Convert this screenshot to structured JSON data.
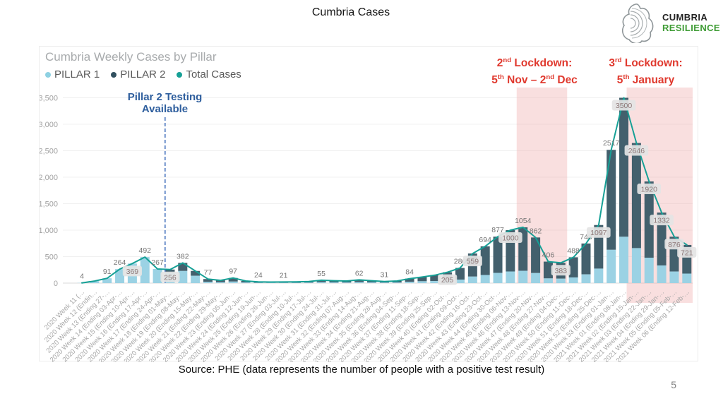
{
  "slide": {
    "title": "Cumbria Cases",
    "source_note": "Source: PHE (data represents the number of people with a positive test result)",
    "page_number": "5",
    "logo": {
      "line1": "CUMBRIA",
      "line2": "RESILIENCE"
    }
  },
  "chart": {
    "title": "Cumbria Weekly Cases by Pillar",
    "legend": [
      {
        "label": "PILLAR 1",
        "color": "#8ed1e2"
      },
      {
        "label": "PILLAR 2",
        "color": "#31505f"
      },
      {
        "label": "Total Cases",
        "color": "#16a096"
      }
    ],
    "annotations": {
      "pillar2_note_line1": "Pillar 2 Testing",
      "pillar2_note_line2": "Available",
      "lockdown2_line1": [
        {
          "t": "2"
        },
        {
          "t": "nd",
          "sup": true
        },
        {
          "t": " Lockdown:"
        }
      ],
      "lockdown2_line2": [
        {
          "t": "5"
        },
        {
          "t": "th",
          "sup": true
        },
        {
          "t": " Nov – 2"
        },
        {
          "t": "nd",
          "sup": true
        },
        {
          "t": " Dec"
        }
      ],
      "lockdown3_line1": [
        {
          "t": "3"
        },
        {
          "t": "rd",
          "sup": true
        },
        {
          "t": " Lockdown:"
        }
      ],
      "lockdown3_line2": [
        {
          "t": "5"
        },
        {
          "t": "th",
          "sup": true
        },
        {
          "t": " January"
        }
      ]
    }
  },
  "chart_data": {
    "type": "bar",
    "subtype": "stacked-columns-with-total-line",
    "title": "Cumbria Weekly Cases by Pillar",
    "ylim": [
      0,
      3500
    ],
    "y_ticks": [
      "0",
      "500",
      "1,000",
      "1,500",
      "2,000",
      "2,500",
      "3,000",
      "3,500"
    ],
    "grid": true,
    "legend_position": "top-left",
    "categories": [
      "2020 Week 11 (Ending 13-Mar-20)",
      "2020 Week 12 (Ending 20-Mar-20)",
      "2020 Week 13 (Ending 27-Mar-20)",
      "2020 Week 14 (Ending 03-Apr-20)",
      "2020 Week 15 (Ending 10-Apr-20)",
      "2020 Week 16 (Ending 17-Apr-20)",
      "2020 Week 17 (Ending 24-Apr-20)",
      "2020 Week 18 (Ending 01-May-20)",
      "2020 Week 19 (Ending 08-May-20)",
      "2020 Week 20 (Ending 15-May-20)",
      "2020 Week 21 (Ending 22-May-20)",
      "2020 Week 22 (Ending 29-May-20)",
      "2020 Week 23 (Ending 05-Jun-20)",
      "2020 Week 24 (Ending 12-Jun-20)",
      "2020 Week 25 (Ending 19-Jun-20)",
      "2020 Week 26 (Ending 26-Jun-20)",
      "2020 Week 27 (Ending 03-Jul-20)",
      "2020 Week 28 (Ending 10-Jul-20)",
      "2020 Week 29 (Ending 17-Jul-20)",
      "2020 Week 30 (Ending 24-Jul-20)",
      "2020 Week 31 (Ending 31-Jul-20)",
      "2020 Week 32 (Ending 07-Aug-20)",
      "2020 Week 33 (Ending 14-Aug-20)",
      "2020 Week 34 (Ending 21-Aug-20)",
      "2020 Week 35 (Ending 28-Aug-20)",
      "2020 Week 36 (Ending 04-Sep-20)",
      "2020 Week 37 (Ending 11-Sep-20)",
      "2020 Week 38 (Ending 18-Sep-20)",
      "2020 Week 39 (Ending 25-Sep-20)",
      "2020 Week 40 (Ending 02-Oct-20)",
      "2020 Week 41 (Ending 09-Oct-20)",
      "2020 Week 42 (Ending 16-Oct-20)",
      "2020 Week 43 (Ending 23-Oct-20)",
      "2020 Week 44 (Ending 30-Oct-20)",
      "2020 Week 45 (Ending 06-Nov-20)",
      "2020 Week 46 (Ending 13-Nov-20)",
      "2020 Week 47 (Ending 20-Nov-20)",
      "2020 Week 48 (Ending 27-Nov-20)",
      "2020 Week 49 (Ending 04-Dec-20)",
      "2020 Week 50 (Ending 11-Dec-20)",
      "2020 Week 51 (Ending 18-Dec-20)",
      "2020 Week 52 (Ending 25-Dec-20)",
      "2020 Week 53 (Ending 01-Jan-21)",
      "2021 Week 01 (Ending 08-Jan-21)",
      "2021 Week 02 (Ending 15-Jan-21)",
      "2021 Week 03 (Ending 22-Jan-21)",
      "2021 Week 04 (Ending 29-Jan-21)",
      "2021 Week 05 (Ending 05-Feb-21)",
      "2021 Week 06 (Ending 12-Feb-21)"
    ],
    "series": [
      {
        "name": "PILLAR 1",
        "role": "bar-bottom",
        "values": [
          4,
          38,
          91,
          264,
          369,
          492,
          267,
          192,
          229,
          138,
          23,
          16,
          29,
          12,
          7,
          6,
          6,
          7,
          9,
          17,
          14,
          12,
          19,
          14,
          9,
          12,
          25,
          35,
          38,
          49,
          66,
          123,
          153,
          193,
          220,
          232,
          190,
          89,
          84,
          107,
          165,
          274,
          629,
          875,
          661,
          480,
          333,
          219,
          180
        ]
      },
      {
        "name": "PILLAR 2",
        "role": "bar-top",
        "values": [
          0,
          0,
          0,
          0,
          0,
          0,
          0,
          64,
          153,
          92,
          54,
          36,
          68,
          28,
          17,
          14,
          15,
          17,
          21,
          38,
          31,
          28,
          43,
          31,
          22,
          28,
          59,
          80,
          112,
          156,
          220,
          436,
          541,
          684,
          780,
          822,
          672,
          317,
          299,
          381,
          583,
          823,
          1888,
          2625,
          1985,
          1440,
          999,
          657,
          541
        ]
      },
      {
        "name": "Total Cases",
        "role": "line",
        "values": [
          4,
          38,
          91,
          264,
          369,
          492,
          267,
          256,
          382,
          230,
          77,
          52,
          97,
          40,
          24,
          20,
          21,
          24,
          30,
          55,
          45,
          40,
          62,
          45,
          31,
          40,
          84,
          115,
          150,
          205,
          286,
          559,
          694,
          877,
          1000,
          1054,
          862,
          406,
          383,
          488,
          748,
          1097,
          2517,
          3500,
          2646,
          1920,
          1332,
          876,
          721
        ]
      }
    ],
    "visible_data_labels": [
      {
        "index": 0,
        "value": "4"
      },
      {
        "index": 2,
        "value": "91"
      },
      {
        "index": 3,
        "value": "264"
      },
      {
        "index": 4,
        "value": "369",
        "boxed": true
      },
      {
        "index": 5,
        "value": "492"
      },
      {
        "index": 6,
        "value": "267"
      },
      {
        "index": 7,
        "value": "256",
        "boxed": true
      },
      {
        "index": 8,
        "value": "382"
      },
      {
        "index": 10,
        "value": "77"
      },
      {
        "index": 12,
        "value": "97"
      },
      {
        "index": 14,
        "value": "24"
      },
      {
        "index": 16,
        "value": "21"
      },
      {
        "index": 19,
        "value": "55"
      },
      {
        "index": 22,
        "value": "62"
      },
      {
        "index": 24,
        "value": "31"
      },
      {
        "index": 26,
        "value": "84"
      },
      {
        "index": 29,
        "value": "205",
        "boxed": true
      },
      {
        "index": 30,
        "value": "286"
      },
      {
        "index": 31,
        "value": "559",
        "boxed": true
      },
      {
        "index": 32,
        "value": "694"
      },
      {
        "index": 33,
        "value": "877"
      },
      {
        "index": 34,
        "value": "1000",
        "boxed": true
      },
      {
        "index": 35,
        "value": "1054"
      },
      {
        "index": 36,
        "value": "862"
      },
      {
        "index": 37,
        "value": "406"
      },
      {
        "index": 38,
        "value": "383",
        "boxed": true
      },
      {
        "index": 39,
        "value": "488"
      },
      {
        "index": 40,
        "value": "748"
      },
      {
        "index": 41,
        "value": "1097",
        "boxed": true
      },
      {
        "index": 42,
        "value": "2517"
      },
      {
        "index": 43,
        "value": "3500",
        "boxed": true
      },
      {
        "index": 44,
        "value": "2646",
        "boxed": true
      },
      {
        "index": 45,
        "value": "1920",
        "boxed": true
      },
      {
        "index": 46,
        "value": "1332",
        "boxed": true
      },
      {
        "index": 47,
        "value": "876",
        "boxed": true
      },
      {
        "index": 48,
        "value": "721",
        "boxed": true
      }
    ],
    "lockdown_bands": [
      {
        "name": "2nd lockdown",
        "from_index": 35,
        "to_index": 38
      },
      {
        "name": "3rd lockdown",
        "from_index": 43,
        "to_index": 48,
        "clipped_start": true,
        "extends_below_axis": true
      }
    ],
    "pillar2_marker": {
      "position_index": 6.6,
      "style": "dashed-vertical-line"
    },
    "colors": {
      "pillar1": "#9bd2e4",
      "pillar2": "#43606d",
      "total_line": "#16a096",
      "band_fill": "rgba(240,170,170,0.38)",
      "marker_line": "#4d78c0",
      "label_plain": "#757575",
      "label_boxed_text": "#8f7a7a",
      "label_box_fill": "#e4e4e4",
      "axis_text": "#a3a3a3"
    }
  }
}
